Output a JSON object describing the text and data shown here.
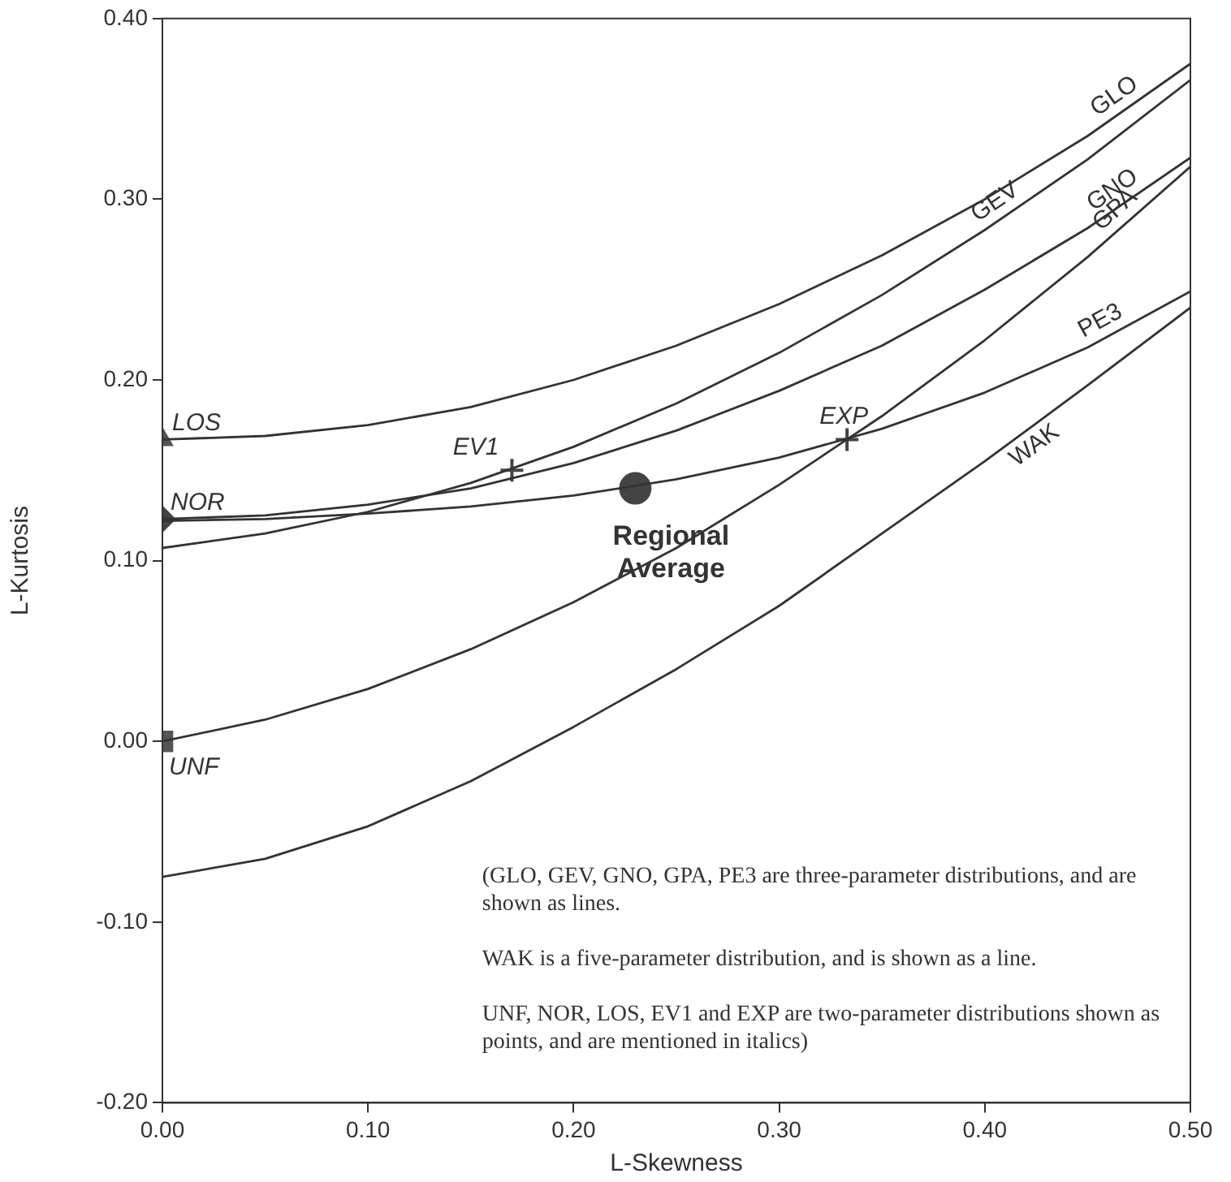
{
  "chart_data": {
    "type": "line",
    "xlabel": "L-Skewness",
    "ylabel": "L-Kurtosis",
    "xlim": [
      0,
      0.5
    ],
    "xticks": [
      {
        "value": 0,
        "label": "0.00"
      },
      {
        "value": 0.1,
        "label": "0.10"
      },
      {
        "value": 0.2,
        "label": "0.20"
      },
      {
        "value": 0.3,
        "label": "0.30"
      },
      {
        "value": 0.4,
        "label": "0.40"
      },
      {
        "value": 0.5,
        "label": "0.50"
      }
    ],
    "ylim": [
      -0.2,
      0.4
    ],
    "yticks": [
      {
        "value": -0.2,
        "label": "-0.20"
      },
      {
        "value": -0.1,
        "label": "-0.10"
      },
      {
        "value": 0,
        "label": "0.00"
      },
      {
        "value": 0.1,
        "label": "0.10"
      },
      {
        "value": 0.2,
        "label": "0.20"
      },
      {
        "value": 0.3,
        "label": "0.30"
      },
      {
        "value": 0.4,
        "label": "0.40"
      }
    ],
    "grid": false,
    "marker": "none",
    "line_style": "solid",
    "x": [
      0,
      0.05,
      0.1,
      0.15,
      0.2,
      0.25,
      0.3,
      0.35,
      0.4,
      0.45,
      0.5
    ],
    "series": [
      {
        "name": "GLO",
        "color": "#333333",
        "values": [
          0.167,
          0.169,
          0.175,
          0.185,
          0.2,
          0.219,
          0.242,
          0.269,
          0.3,
          0.335,
          0.375
        ]
      },
      {
        "name": "GEV",
        "color": "#333333",
        "values": [
          0.107,
          0.115,
          0.127,
          0.143,
          0.163,
          0.187,
          0.215,
          0.247,
          0.283,
          0.322,
          0.366
        ]
      },
      {
        "name": "GNO",
        "color": "#333333",
        "values": [
          0.123,
          0.125,
          0.131,
          0.14,
          0.154,
          0.172,
          0.194,
          0.219,
          0.25,
          0.284,
          0.323
        ]
      },
      {
        "name": "GPA",
        "color": "#333333",
        "values": [
          0,
          0.012,
          0.029,
          0.051,
          0.077,
          0.107,
          0.142,
          0.18,
          0.222,
          0.268,
          0.318
        ]
      },
      {
        "name": "PE3",
        "color": "#333333",
        "values": [
          0.122,
          0.123,
          0.126,
          0.13,
          0.136,
          0.145,
          0.157,
          0.173,
          0.193,
          0.218,
          0.249
        ]
      },
      {
        "name": "WAK",
        "color": "#333333",
        "values": [
          -0.075,
          -0.065,
          -0.047,
          -0.022,
          0.008,
          0.04,
          0.075,
          0.115,
          0.155,
          0.197,
          0.24
        ]
      },
      {
        "name": "UNF",
        "type": "scatter",
        "marker": "square",
        "color": "#555555",
        "x": [
          0
        ],
        "values": [
          0
        ]
      },
      {
        "name": "NOR",
        "type": "scatter",
        "marker": "diamond",
        "color": "#444444",
        "x": [
          0
        ],
        "values": [
          0.123
        ]
      },
      {
        "name": "LOS",
        "type": "scatter",
        "marker": "triangle",
        "color": "#555555",
        "x": [
          0
        ],
        "values": [
          0.167
        ]
      },
      {
        "name": "EV1",
        "type": "scatter",
        "marker": "cross",
        "color": "#444444",
        "x": [
          0.17
        ],
        "values": [
          0.15
        ]
      },
      {
        "name": "EXP",
        "type": "scatter",
        "marker": "cross",
        "color": "#444444",
        "x": [
          0.333
        ],
        "values": [
          0.167
        ]
      },
      {
        "name": "Regional Average",
        "type": "scatter",
        "marker": "circle",
        "color": "#444444",
        "x": [
          0.23
        ],
        "values": [
          0.14
        ]
      }
    ],
    "annotations": [
      "(GLO, GEV, GNO, GPA, PE3 are three-parameter distributions, and are shown as lines.",
      "WAK is a five-parameter distribution, and is shown as a line.",
      "UNF, NOR, LOS, EV1 and EXP are two-parameter distributions shown as points, and are mentioned in italics)"
    ]
  }
}
